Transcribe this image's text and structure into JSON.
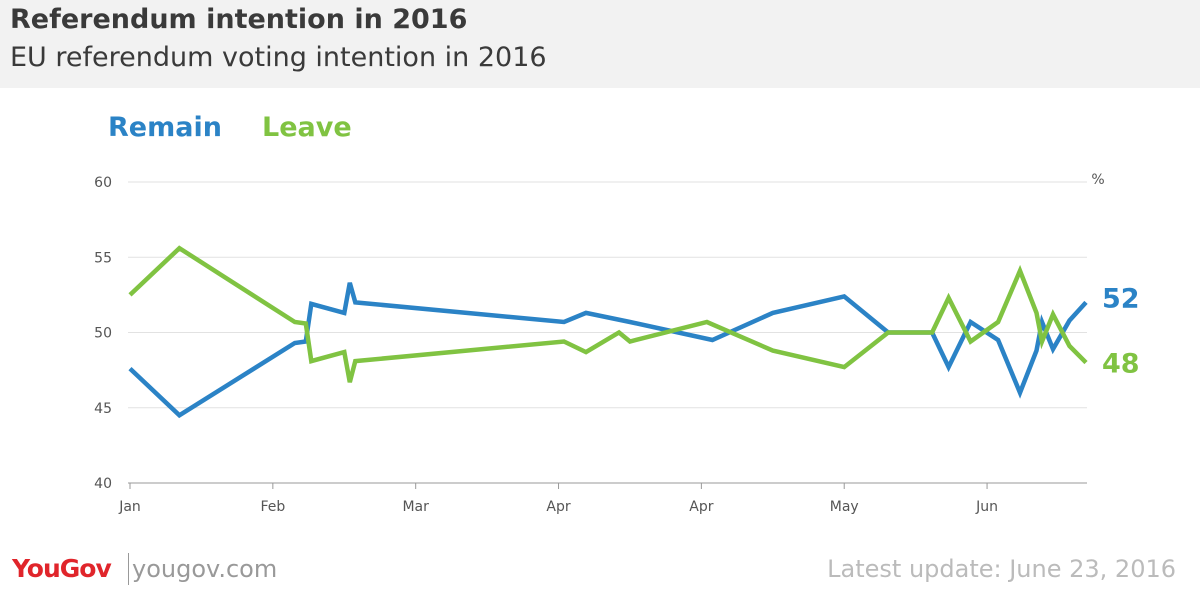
{
  "header": {
    "title": "Referendum intention in 2016",
    "subtitle": "EU referendum voting intention in 2016"
  },
  "footer": {
    "logo": "YouGov",
    "site": "yougov.com",
    "update": "Latest update: June  23, 2016"
  },
  "colors": {
    "remain": "#2b83c6",
    "leave": "#80c342",
    "grid": "#e2e2e2"
  },
  "chart_data": {
    "type": "line",
    "title": "Referendum intention in 2016",
    "subtitle": "EU referendum voting intention in 2016",
    "ylabel": "%",
    "ylim": [
      40,
      60
    ],
    "yticks": [
      40,
      45,
      50,
      55,
      60
    ],
    "xticks": [
      {
        "label": "Jan",
        "date": "2016-01-01"
      },
      {
        "label": "Feb",
        "date": "2016-01-27"
      },
      {
        "label": "Mar",
        "date": "2016-02-22"
      },
      {
        "label": "Apr",
        "date": "2016-03-19"
      },
      {
        "label": "Apr",
        "date": "2016-04-14"
      },
      {
        "label": "May",
        "date": "2016-05-10"
      },
      {
        "label": "Jun",
        "date": "2016-06-05"
      }
    ],
    "grid": true,
    "legend": "top-left",
    "series": [
      {
        "name": "Remain",
        "color": "#2b83c6",
        "end_label": "52",
        "points": [
          [
            "2016-01-01",
            47.6
          ],
          [
            "2016-01-10",
            44.5
          ],
          [
            "2016-01-31",
            49.3
          ],
          [
            "2016-02-02",
            49.4
          ],
          [
            "2016-02-03",
            51.9
          ],
          [
            "2016-02-09",
            51.3
          ],
          [
            "2016-02-10",
            53.3
          ],
          [
            "2016-02-11",
            52.0
          ],
          [
            "2016-03-20",
            50.7
          ],
          [
            "2016-03-24",
            51.3
          ],
          [
            "2016-04-01",
            50.7
          ],
          [
            "2016-04-16",
            49.5
          ],
          [
            "2016-04-27",
            51.3
          ],
          [
            "2016-05-10",
            52.4
          ],
          [
            "2016-05-18",
            50.0
          ],
          [
            "2016-05-26",
            50.0
          ],
          [
            "2016-05-29",
            47.7
          ],
          [
            "2016-06-02",
            50.7
          ],
          [
            "2016-06-07",
            49.5
          ],
          [
            "2016-06-11",
            46.0
          ],
          [
            "2016-06-14",
            48.8
          ],
          [
            "2016-06-15",
            50.7
          ],
          [
            "2016-06-17",
            48.9
          ],
          [
            "2016-06-20",
            50.8
          ],
          [
            "2016-06-23",
            52.0
          ]
        ]
      },
      {
        "name": "Leave",
        "color": "#80c342",
        "end_label": "48",
        "points": [
          [
            "2016-01-01",
            52.5
          ],
          [
            "2016-01-10",
            55.6
          ],
          [
            "2016-01-31",
            50.7
          ],
          [
            "2016-02-02",
            50.6
          ],
          [
            "2016-02-03",
            48.1
          ],
          [
            "2016-02-09",
            48.7
          ],
          [
            "2016-02-10",
            46.7
          ],
          [
            "2016-02-11",
            48.1
          ],
          [
            "2016-03-20",
            49.4
          ],
          [
            "2016-03-24",
            48.7
          ],
          [
            "2016-03-30",
            50.0
          ],
          [
            "2016-04-01",
            49.4
          ],
          [
            "2016-04-15",
            50.7
          ],
          [
            "2016-04-27",
            48.8
          ],
          [
            "2016-05-10",
            47.7
          ],
          [
            "2016-05-18",
            50.0
          ],
          [
            "2016-05-26",
            50.0
          ],
          [
            "2016-05-29",
            52.3
          ],
          [
            "2016-06-02",
            49.4
          ],
          [
            "2016-06-07",
            50.7
          ],
          [
            "2016-06-11",
            54.1
          ],
          [
            "2016-06-14",
            51.3
          ],
          [
            "2016-06-15",
            49.4
          ],
          [
            "2016-06-17",
            51.2
          ],
          [
            "2016-06-20",
            49.1
          ],
          [
            "2016-06-23",
            48.0
          ]
        ]
      }
    ]
  }
}
